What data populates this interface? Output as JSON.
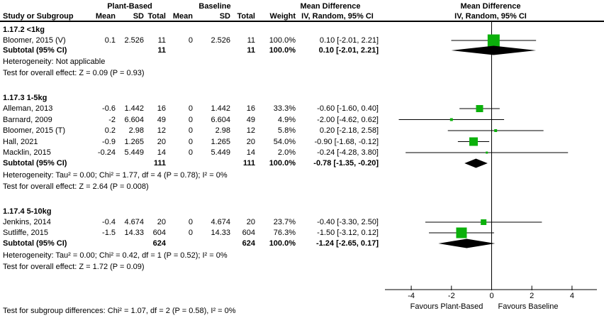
{
  "colors": {
    "square_green": "#0bb00b",
    "diamond_black": "#000000",
    "line_black": "#000000",
    "text_black": "#000000",
    "background": "#ffffff"
  },
  "chart_data": {
    "type": "forest",
    "groups": {
      "experimental": "Plant-Based",
      "control": "Baseline"
    },
    "columns": {
      "study": "Study or Subgroup",
      "mean": "Mean",
      "sd": "SD",
      "total": "Total",
      "weight": "Weight",
      "ci": "IV, Random, 95% CI"
    },
    "effect_header": "Mean Difference",
    "effect_subheader": "IV, Random, 95% CI",
    "plot_header": "Mean Difference",
    "plot_subheader": "IV, Random, 95% CI",
    "axis": {
      "ticks": [
        -4,
        -2,
        0,
        2,
        4
      ],
      "min": -5.3,
      "max": 5.2,
      "favours_left": "Favours Plant-Based",
      "favours_right": "Favours Baseline"
    },
    "subgroups": [
      {
        "title": "1.17.2 <1kg",
        "studies": [
          {
            "name": "Bloomer, 2015 (V)",
            "mean_pb": "0.1",
            "sd_pb": "2.526",
            "total_pb": "11",
            "mean_bl": "0",
            "sd_bl": "2.526",
            "total_bl": "11",
            "weight": "100.0%",
            "ci_label": "0.10 [-2.01, 2.21]",
            "md": 0.1,
            "ci_low": -2.01,
            "ci_high": 2.21,
            "weight_pct": 100.0
          }
        ],
        "subtotal": {
          "label": "Subtotal (95% CI)",
          "total_pb": "11",
          "total_bl": "11",
          "weight": "100.0%",
          "ci_label": "0.10 [-2.01, 2.21]",
          "md": 0.1,
          "ci_low": -2.01,
          "ci_high": 2.21
        },
        "heterogeneity": "Heterogeneity: Not applicable",
        "overall_test": "Test for overall effect: Z = 0.09 (P = 0.93)"
      },
      {
        "title": "1.17.3 1-5kg",
        "studies": [
          {
            "name": "Alleman, 2013",
            "mean_pb": "-0.6",
            "sd_pb": "1.442",
            "total_pb": "16",
            "mean_bl": "0",
            "sd_bl": "1.442",
            "total_bl": "16",
            "weight": "33.3%",
            "ci_label": "-0.60 [-1.60, 0.40]",
            "md": -0.6,
            "ci_low": -1.6,
            "ci_high": 0.4,
            "weight_pct": 33.3
          },
          {
            "name": "Barnard, 2009",
            "mean_pb": "-2",
            "sd_pb": "6.604",
            "total_pb": "49",
            "mean_bl": "0",
            "sd_bl": "6.604",
            "total_bl": "49",
            "weight": "4.9%",
            "ci_label": "-2.00 [-4.62, 0.62]",
            "md": -2.0,
            "ci_low": -4.62,
            "ci_high": 0.62,
            "weight_pct": 4.9
          },
          {
            "name": "Bloomer, 2015 (T)",
            "mean_pb": "0.2",
            "sd_pb": "2.98",
            "total_pb": "12",
            "mean_bl": "0",
            "sd_bl": "2.98",
            "total_bl": "12",
            "weight": "5.8%",
            "ci_label": "0.20 [-2.18, 2.58]",
            "md": 0.2,
            "ci_low": -2.18,
            "ci_high": 2.58,
            "weight_pct": 5.8
          },
          {
            "name": "Hall, 2021",
            "mean_pb": "-0.9",
            "sd_pb": "1.265",
            "total_pb": "20",
            "mean_bl": "0",
            "sd_bl": "1.265",
            "total_bl": "20",
            "weight": "54.0%",
            "ci_label": "-0.90 [-1.68, -0.12]",
            "md": -0.9,
            "ci_low": -1.68,
            "ci_high": -0.12,
            "weight_pct": 54.0
          },
          {
            "name": "Macklin, 2015",
            "mean_pb": "-0.24",
            "sd_pb": "5.449",
            "total_pb": "14",
            "mean_bl": "0",
            "sd_bl": "5.449",
            "total_bl": "14",
            "weight": "2.0%",
            "ci_label": "-0.24 [-4.28, 3.80]",
            "md": -0.24,
            "ci_low": -4.28,
            "ci_high": 3.8,
            "weight_pct": 2.0
          }
        ],
        "subtotal": {
          "label": "Subtotal (95% CI)",
          "total_pb": "111",
          "total_bl": "111",
          "weight": "100.0%",
          "ci_label": "-0.78 [-1.35, -0.20]",
          "md": -0.78,
          "ci_low": -1.35,
          "ci_high": -0.2
        },
        "heterogeneity": "Heterogeneity: Tau² = 0.00; Chi² = 1.77, df = 4 (P = 0.78); I² = 0%",
        "overall_test": "Test for overall effect: Z = 2.64 (P = 0.008)"
      },
      {
        "title": "1.17.4 5-10kg",
        "studies": [
          {
            "name": "Jenkins, 2014",
            "mean_pb": "-0.4",
            "sd_pb": "4.674",
            "total_pb": "20",
            "mean_bl": "0",
            "sd_bl": "4.674",
            "total_bl": "20",
            "weight": "23.7%",
            "ci_label": "-0.40 [-3.30, 2.50]",
            "md": -0.4,
            "ci_low": -3.3,
            "ci_high": 2.5,
            "weight_pct": 23.7
          },
          {
            "name": "Sutliffe, 2015",
            "mean_pb": "-1.5",
            "sd_pb": "14.33",
            "total_pb": "604",
            "mean_bl": "0",
            "sd_bl": "14.33",
            "total_bl": "604",
            "weight": "76.3%",
            "ci_label": "-1.50 [-3.12, 0.12]",
            "md": -1.5,
            "ci_low": -3.12,
            "ci_high": 0.12,
            "weight_pct": 76.3
          }
        ],
        "subtotal": {
          "label": "Subtotal (95% CI)",
          "total_pb": "624",
          "total_bl": "624",
          "weight": "100.0%",
          "ci_label": "-1.24 [-2.65, 0.17]",
          "md": -1.24,
          "ci_low": -2.65,
          "ci_high": 0.17
        },
        "heterogeneity": "Heterogeneity: Tau² = 0.00; Chi² = 0.42, df = 1 (P = 0.52); I² = 0%",
        "overall_test": "Test for overall effect: Z = 1.72 (P = 0.09)"
      }
    ],
    "footer": "Test for subgroup differences: Chi² = 1.07, df = 2 (P = 0.58), I² = 0%"
  }
}
